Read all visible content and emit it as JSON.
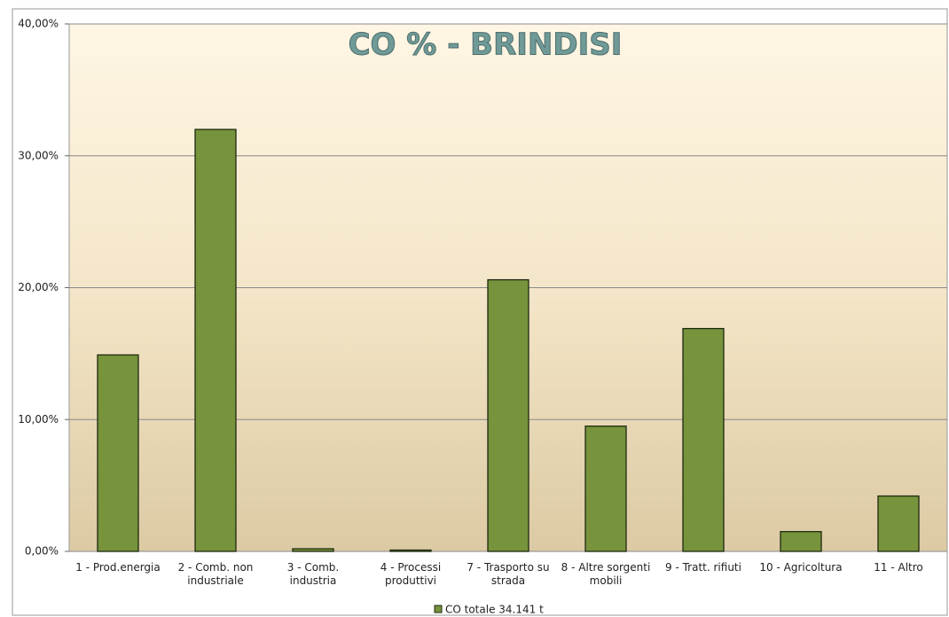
{
  "chart_data": {
    "type": "bar",
    "title": "CO %  - BRINDISI",
    "categories": [
      "1 - Prod.energia",
      "2 - Comb. non industriale",
      "3 - Comb. industria",
      "4 - Processi produttivi",
      "7 - Trasporto su strada",
      "8 - Altre sorgenti mobili",
      "9 - Tratt. rifiuti",
      "10 - Agricoltura",
      "11 - Altro"
    ],
    "series": [
      {
        "name": "CO totale 34.141 t",
        "color": "#77933c",
        "values": [
          14.9,
          32.0,
          0.2,
          0.1,
          20.6,
          9.5,
          16.9,
          1.5,
          4.2
        ]
      }
    ],
    "ylim": [
      0,
      40
    ],
    "yticks": [
      {
        "value": 0,
        "label": "0,00%"
      },
      {
        "value": 10,
        "label": "10,00%"
      },
      {
        "value": 20,
        "label": "20,00%"
      },
      {
        "value": 30,
        "label": "30,00%"
      },
      {
        "value": 40,
        "label": "40,00%"
      }
    ],
    "grid": true,
    "legend": "bottom"
  }
}
